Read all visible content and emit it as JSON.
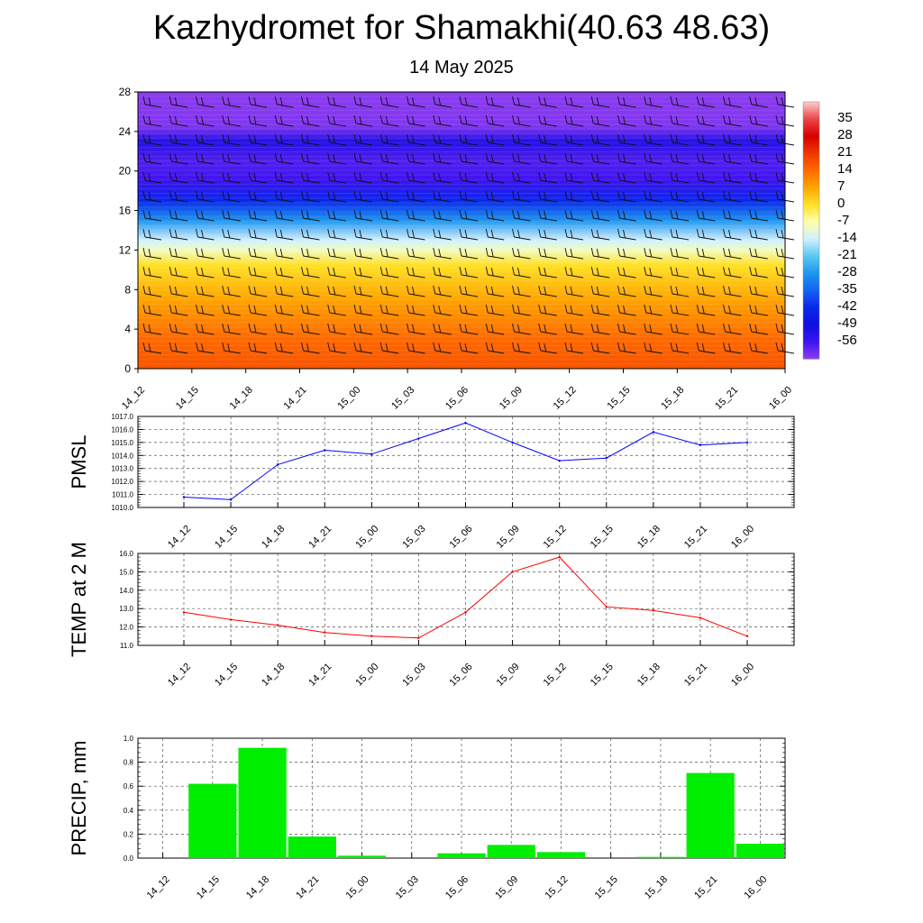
{
  "title": "Kazhydromet for Shamakhi(40.63 48.63)",
  "subtitle": "14 May 2025",
  "chart_data": [
    {
      "type": "heatmap",
      "x": [
        "14_12",
        "14_15",
        "14_18",
        "14_21",
        "15_00",
        "15_03",
        "15_06",
        "15_09",
        "15_12",
        "15_15",
        "15_18",
        "15_21",
        "16_00"
      ],
      "y_ticks": [
        0,
        4,
        8,
        12,
        16,
        20,
        24,
        28
      ],
      "ylim": [
        0,
        28
      ],
      "colorbar_labels": [
        "35",
        "28",
        "21",
        "14",
        "7",
        "0",
        "-7",
        "-14",
        "-21",
        "-28",
        "-35",
        "-42",
        "-49",
        "-56"
      ],
      "colorbar_range": [
        -63,
        42
      ],
      "temperature_profile": [
        {
          "level": 0,
          "value": 17
        },
        {
          "level": 3,
          "value": 14
        },
        {
          "level": 7,
          "value": 7
        },
        {
          "level": 10.5,
          "value": 0
        },
        {
          "level": 12,
          "value": -9
        },
        {
          "level": 13,
          "value": -14
        },
        {
          "level": 15,
          "value": -28
        },
        {
          "level": 17,
          "value": -42
        },
        {
          "level": 19,
          "value": -56
        },
        {
          "level": 21,
          "value": -58
        },
        {
          "level": 23,
          "value": -52
        },
        {
          "level": 24.5,
          "value": -62
        },
        {
          "level": 28,
          "value": -63
        }
      ],
      "wind_barbs": true
    },
    {
      "type": "line",
      "ylabel": "PMSL",
      "x": [
        "14_12",
        "14_15",
        "14_18",
        "14_21",
        "15_00",
        "15_03",
        "15_06",
        "15_09",
        "15_12",
        "15_15",
        "15_18",
        "15_21",
        "16_00"
      ],
      "values": [
        1010.8,
        1010.6,
        1013.3,
        1014.4,
        1014.1,
        1015.3,
        1016.5,
        1015.0,
        1013.6,
        1013.8,
        1015.8,
        1014.8,
        1015.0
      ],
      "ylim": [
        1010.0,
        1017.0
      ],
      "y_ticks": [
        "1010.0",
        "1011.0",
        "1012.0",
        "1013.0",
        "1014.0",
        "1015.0",
        "1016.0",
        "1017.0"
      ],
      "color": "#0000ff",
      "grid": true
    },
    {
      "type": "line",
      "ylabel": "TEMP at 2 M",
      "x": [
        "14_12",
        "14_15",
        "14_18",
        "14_21",
        "15_00",
        "15_03",
        "15_06",
        "15_09",
        "15_12",
        "15_15",
        "15_18",
        "15_21",
        "16_00"
      ],
      "values": [
        12.8,
        12.4,
        12.1,
        11.7,
        11.5,
        11.4,
        12.8,
        15.0,
        15.8,
        13.1,
        12.9,
        12.5,
        11.5
      ],
      "ylim": [
        11.0,
        16.0
      ],
      "y_ticks": [
        "11.0",
        "12.0",
        "13.0",
        "14.0",
        "15.0",
        "16.0"
      ],
      "color": "#ff0000",
      "grid": true
    },
    {
      "type": "bar",
      "ylabel": "PRECIP, mm",
      "categories": [
        "14_12",
        "14_15",
        "14_18",
        "14_21",
        "15_00",
        "15_03",
        "15_06",
        "15_09",
        "15_12",
        "15_15",
        "15_18",
        "15_21",
        "16_00"
      ],
      "values": [
        0,
        0.62,
        0.92,
        0.18,
        0.02,
        0,
        0.04,
        0.11,
        0.05,
        0,
        0.01,
        0.71,
        0.12
      ],
      "ylim": [
        0,
        1.0
      ],
      "y_ticks": [
        "0.0",
        "0.2",
        "0.4",
        "0.6",
        "0.8",
        "1.0"
      ],
      "color": "#00ee00",
      "grid": true
    }
  ]
}
